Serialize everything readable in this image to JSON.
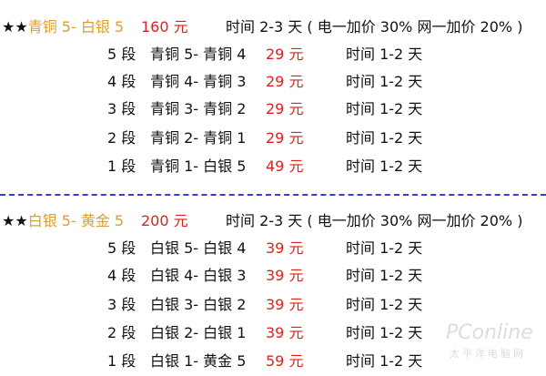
{
  "sections": [
    {
      "stars": "★★",
      "tier": "青铜 5- 白银 5",
      "price": "160 元",
      "time": "时间 2-3 天 ( 电一加价 30% 网一加价 20% )",
      "rows": [
        {
          "seg": "5 段",
          "range": "青铜 5- 青铜 4",
          "price": "29 元",
          "time": "时间 1-2 天"
        },
        {
          "seg": "4 段",
          "range": "青铜 4- 青铜 3",
          "price": "29 元",
          "time": "时间 1-2 天"
        },
        {
          "seg": "3 段",
          "range": "青铜 3- 青铜 2",
          "price": "29 元",
          "time": "时间 1-2 天"
        },
        {
          "seg": "2 段",
          "range": "青铜 2- 青铜 1",
          "price": "29 元",
          "time": "时间 1-2 天"
        },
        {
          "seg": "1 段",
          "range": "青铜 1- 白银 5",
          "price": "49 元",
          "time": "时间 1-2 天"
        }
      ]
    },
    {
      "stars": "★★",
      "tier": "白银 5- 黄金 5",
      "price": "200 元",
      "time": "时间 2-3 天 ( 电一加价 30% 网一加价 20% )",
      "rows": [
        {
          "seg": "5 段",
          "range": "白银 5- 白银 4",
          "price": "39 元",
          "time": "时间 1-2 天"
        },
        {
          "seg": "4 段",
          "range": "白银 4- 白银 3",
          "price": "39 元",
          "time": "时间 1-2 天"
        },
        {
          "seg": "3 段",
          "range": "白银 3- 白银 2",
          "price": "39 元",
          "time": "时间 1-2 天"
        },
        {
          "seg": "2 段",
          "range": "白银 2- 白银 1",
          "price": "39 元",
          "time": "时间 1-2 天"
        },
        {
          "seg": "1 段",
          "range": "白银 1- 黄金 5",
          "price": "59 元",
          "time": "时间 1-2 天"
        }
      ]
    }
  ],
  "watermark": {
    "brand": "PConline",
    "sub": "太平洋电脑网"
  },
  "colors": {
    "tier": "#d9a030",
    "price": "#e0201e",
    "divider": "#3a3adf"
  }
}
